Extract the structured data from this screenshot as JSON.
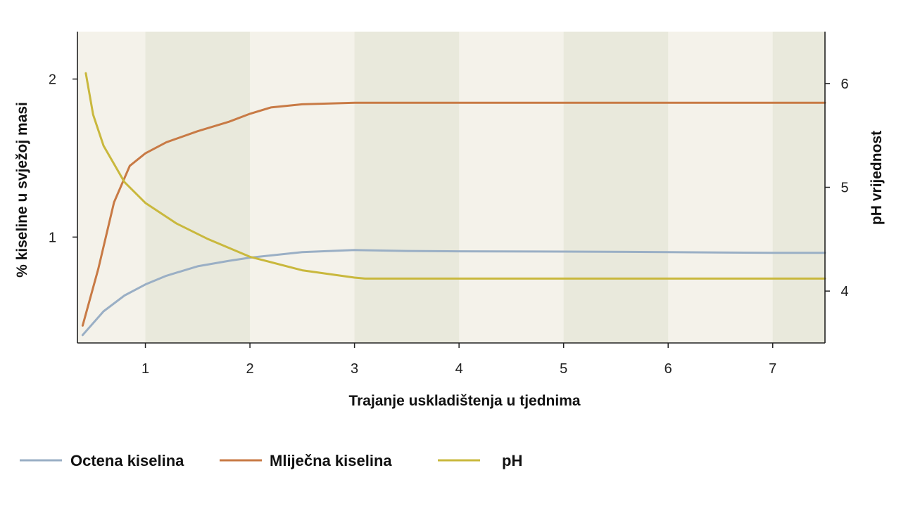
{
  "chart_data": {
    "type": "line",
    "title": "",
    "xlabel": "Trajanje uskladištenja u tjednima",
    "ylabel_left": "% kiseline u svježoj masi",
    "ylabel_right": "pH vrijednost",
    "xlim": [
      0.35,
      7.5
    ],
    "ylim_left": [
      0.33,
      2.3
    ],
    "ylim_right": [
      3.5,
      6.5
    ],
    "x_ticks": [
      "1",
      "2",
      "3",
      "4",
      "5",
      "6",
      "7"
    ],
    "y_left_ticks": [
      "1",
      "2"
    ],
    "y_right_ticks": [
      "4",
      "5",
      "6"
    ],
    "grid": false,
    "legend_position": "bottom",
    "colors": {
      "background": "#f4f2ea",
      "band": "#e9e9dc",
      "axis": "#222222"
    },
    "series": [
      {
        "name": "Octena kiselina",
        "axis": "left",
        "color": "#9aafc5",
        "x": [
          0.4,
          0.6,
          0.8,
          1.0,
          1.2,
          1.5,
          1.8,
          2.0,
          2.5,
          3.0,
          3.5,
          4.0,
          5.0,
          6.0,
          7.0,
          7.5
        ],
        "y": [
          0.38,
          0.53,
          0.63,
          0.7,
          0.755,
          0.815,
          0.85,
          0.87,
          0.905,
          0.918,
          0.912,
          0.91,
          0.908,
          0.905,
          0.9,
          0.9
        ]
      },
      {
        "name": "Mliječna kiselina",
        "axis": "left",
        "color": "#c87a45",
        "x": [
          0.4,
          0.55,
          0.7,
          0.85,
          1.0,
          1.2,
          1.5,
          1.8,
          2.0,
          2.2,
          2.5,
          3.0,
          4.0,
          5.0,
          6.0,
          7.0,
          7.5
        ],
        "y": [
          0.44,
          0.8,
          1.22,
          1.45,
          1.53,
          1.6,
          1.67,
          1.73,
          1.78,
          1.82,
          1.84,
          1.85,
          1.85,
          1.85,
          1.85,
          1.85,
          1.85
        ]
      },
      {
        "name": "pH",
        "axis": "right",
        "color": "#c9b83d",
        "x": [
          0.43,
          0.5,
          0.6,
          0.8,
          1.0,
          1.3,
          1.6,
          2.0,
          2.5,
          3.0,
          3.1,
          4.0,
          5.0,
          6.0,
          7.0,
          7.5
        ],
        "y": [
          6.1,
          5.7,
          5.4,
          5.05,
          4.85,
          4.65,
          4.5,
          4.33,
          4.2,
          4.13,
          4.12,
          4.12,
          4.12,
          4.12,
          4.12,
          4.12
        ]
      }
    ]
  },
  "legend": [
    {
      "label": "Octena kiselina",
      "color": "#9aafc5"
    },
    {
      "label": "Mliječna kiselina",
      "color": "#c87a45"
    },
    {
      "label": "pH",
      "color": "#c9b83d"
    }
  ]
}
